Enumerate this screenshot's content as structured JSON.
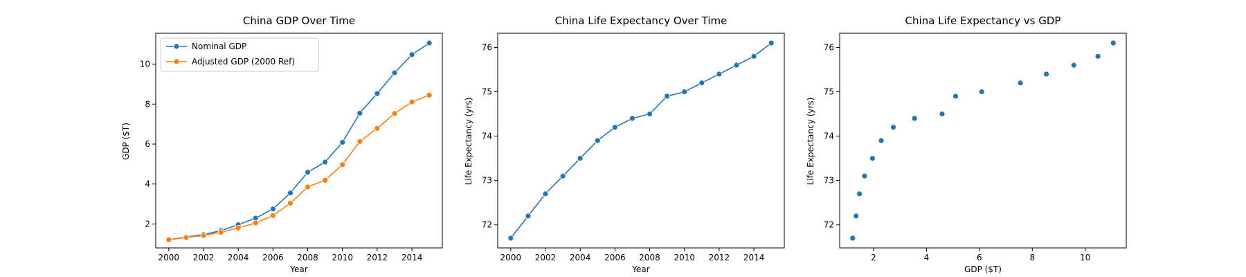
{
  "colors": {
    "series1": "#1f77b4",
    "series2": "#ff7f0e"
  },
  "chart_data": [
    {
      "type": "line",
      "title": "China GDP Over Time",
      "xlabel": "Year",
      "ylabel": "GDP ($T)",
      "xlim": [
        1999.25,
        2015.75
      ],
      "ylim": [
        0.8,
        11.55
      ],
      "xticks": [
        2000,
        2002,
        2004,
        2006,
        2008,
        2010,
        2012,
        2014
      ],
      "yticks": [
        2,
        4,
        6,
        8,
        10
      ],
      "legend": "upper-left",
      "x": [
        2000,
        2001,
        2002,
        2003,
        2004,
        2005,
        2006,
        2007,
        2008,
        2009,
        2010,
        2011,
        2012,
        2013,
        2014,
        2015
      ],
      "series": [
        {
          "name": "Nominal GDP",
          "values": [
            1.21,
            1.34,
            1.47,
            1.66,
            1.96,
            2.29,
            2.75,
            3.55,
            4.59,
            5.1,
            6.09,
            7.55,
            8.53,
            9.57,
            10.48,
            11.06
          ]
        },
        {
          "name": "Adjusted GDP (2000 Ref)",
          "values": [
            1.21,
            1.32,
            1.42,
            1.58,
            1.8,
            2.05,
            2.42,
            3.04,
            3.85,
            4.19,
            4.97,
            6.13,
            6.79,
            7.53,
            8.11,
            8.45
          ]
        }
      ]
    },
    {
      "type": "line",
      "title": "China Life Expectancy Over Time",
      "xlabel": "Year",
      "ylabel": "Life Expectancy (yrs)",
      "xlim": [
        1999.25,
        2015.75
      ],
      "ylim": [
        71.48,
        76.32
      ],
      "xticks": [
        2000,
        2002,
        2004,
        2006,
        2008,
        2010,
        2012,
        2014
      ],
      "yticks": [
        72,
        73,
        74,
        75,
        76
      ],
      "x": [
        2000,
        2001,
        2002,
        2003,
        2004,
        2005,
        2006,
        2007,
        2008,
        2009,
        2010,
        2011,
        2012,
        2013,
        2014,
        2015
      ],
      "series": [
        {
          "values": [
            71.7,
            72.2,
            72.7,
            73.1,
            73.5,
            73.9,
            74.2,
            74.4,
            74.5,
            74.9,
            75.0,
            75.2,
            75.4,
            75.6,
            75.8,
            76.1
          ]
        }
      ]
    },
    {
      "type": "scatter",
      "title": "China Life Expectancy vs GDP",
      "xlabel": "GDP ($T)",
      "ylabel": "Life Expectancy (yrs)",
      "xlim": [
        0.72,
        11.55
      ],
      "ylim": [
        71.48,
        76.32
      ],
      "xticks": [
        2,
        4,
        6,
        8,
        10
      ],
      "yticks": [
        72,
        73,
        74,
        75,
        76
      ],
      "x": [
        1.21,
        1.34,
        1.47,
        1.66,
        1.96,
        2.29,
        2.75,
        3.55,
        4.59,
        5.1,
        6.09,
        7.55,
        8.53,
        9.57,
        10.48,
        11.06
      ],
      "series": [
        {
          "values": [
            71.7,
            72.2,
            72.7,
            73.1,
            73.5,
            73.9,
            74.2,
            74.4,
            74.5,
            74.9,
            75.0,
            75.2,
            75.4,
            75.6,
            75.8,
            76.1
          ]
        }
      ]
    }
  ]
}
